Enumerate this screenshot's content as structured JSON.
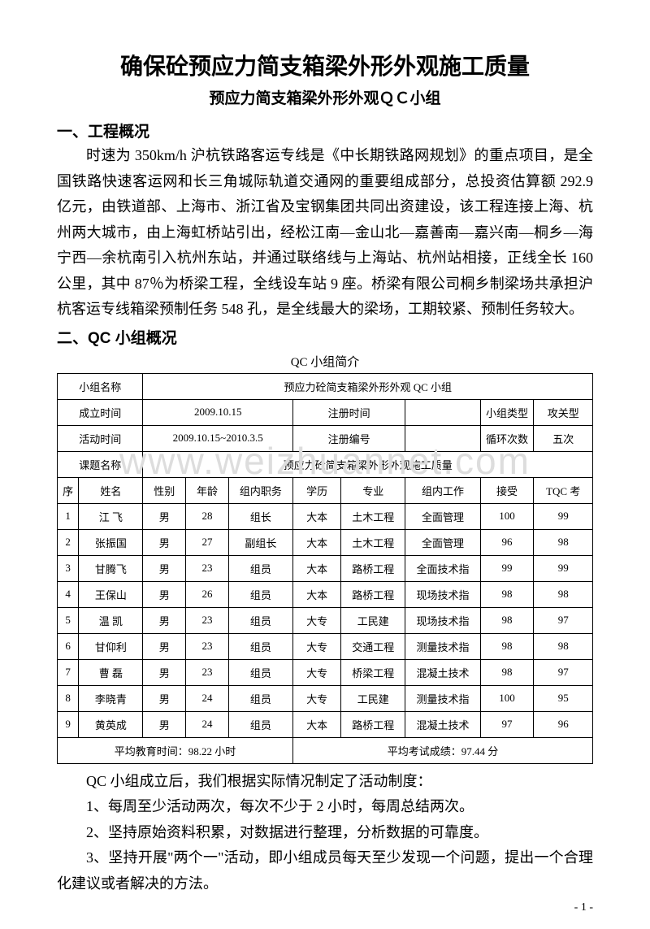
{
  "title": "确保砼预应力简支箱梁外形外观施工质量",
  "subtitle": "预应力简支箱梁外形外观ＱＣ小组",
  "section1": {
    "heading": "一、工程概况",
    "para": "时速为 350km/h 沪杭铁路客运专线是《中长期铁路网规划》的重点项目，是全国铁路快速客运网和长三角城际轨道交通网的重要组成部分，总投资估算额 292.9 亿元，由铁道部、上海市、浙江省及宝钢集团共同出资建设，该工程连接上海、杭州两大城市，由上海虹桥站引出，经松江南—金山北—嘉善南—嘉兴南—桐乡—海宁西—余杭南引入杭州东站，并通过联络线与上海站、杭州站相接，正线全长 160 公里，其中 87％为桥梁工程，全线设车站 9 座。桥梁有限公司桐乡制梁场共承担沪杭客运专线箱梁预制任务 548 孔，是全线最大的梁场，工期较紧、预制任务较大。"
  },
  "section2": {
    "heading": "二、QC 小组概况",
    "caption": "QC 小组简介"
  },
  "meta": {
    "groupNameLabel": "小组名称",
    "groupName": "预应力砼简支箱梁外形外观 QC 小组",
    "foundLabel": "成立时间",
    "foundDate": "2009.10.15",
    "regTimeLabel": "注册时间",
    "regTime": "",
    "groupTypeLabel": "小组类型",
    "groupType": "攻关型",
    "activityLabel": "活动时间",
    "activityPeriod": "2009.10.15~2010.3.5",
    "regNoLabel": "注册编号",
    "regNo": "",
    "cycleLabel": "循环次数",
    "cycleCount": "五次",
    "topicLabel": "课题名称",
    "topic": "预应力砼简支箱梁外形外观施工质量"
  },
  "headers": {
    "seq": "序",
    "name": "姓名",
    "sex": "性别",
    "age": "年龄",
    "role": "组内职务",
    "edu": "学历",
    "major": "专业",
    "job": "组内工作",
    "accept": "接受",
    "tqc": "TQC 考"
  },
  "members": [
    {
      "seq": "1",
      "name": "江  飞",
      "sex": "男",
      "age": "28",
      "role": "组长",
      "edu": "大本",
      "major": "土木工程",
      "job": "全面管理",
      "accept": "100",
      "tqc": "99"
    },
    {
      "seq": "2",
      "name": "张振国",
      "sex": "男",
      "age": "27",
      "role": "副组长",
      "edu": "大本",
      "major": "土木工程",
      "job": "全面管理",
      "accept": "96",
      "tqc": "98"
    },
    {
      "seq": "3",
      "name": "甘腾飞",
      "sex": "男",
      "age": "23",
      "role": "组员",
      "edu": "大本",
      "major": "路桥工程",
      "job": "全面技术指",
      "accept": "99",
      "tqc": "99"
    },
    {
      "seq": "4",
      "name": "王保山",
      "sex": "男",
      "age": "26",
      "role": "组员",
      "edu": "大本",
      "major": "路桥工程",
      "job": "现场技术指",
      "accept": "98",
      "tqc": "98"
    },
    {
      "seq": "5",
      "name": "温  凯",
      "sex": "男",
      "age": "23",
      "role": "组员",
      "edu": "大专",
      "major": "工民建",
      "job": "现场技术指",
      "accept": "98",
      "tqc": "97"
    },
    {
      "seq": "6",
      "name": "甘仰利",
      "sex": "男",
      "age": "23",
      "role": "组员",
      "edu": "大专",
      "major": "交通工程",
      "job": "测量技术指",
      "accept": "98",
      "tqc": "98"
    },
    {
      "seq": "7",
      "name": "曹  磊",
      "sex": "男",
      "age": "23",
      "role": "组员",
      "edu": "大专",
      "major": "桥梁工程",
      "job": "混凝土技术",
      "accept": "98",
      "tqc": "97"
    },
    {
      "seq": "8",
      "name": "李晓青",
      "sex": "男",
      "age": "24",
      "role": "组员",
      "edu": "大专",
      "major": "工民建",
      "job": "测量技术指",
      "accept": "100",
      "tqc": "95"
    },
    {
      "seq": "9",
      "name": "黄英成",
      "sex": "男",
      "age": "24",
      "role": "组员",
      "edu": "大本",
      "major": "路桥工程",
      "job": "混凝土技术",
      "accept": "97",
      "tqc": "96"
    }
  ],
  "footer": {
    "eduTime": "平均教育时间：98.22 小时",
    "examScore": "平均考试成绩：97.44 分"
  },
  "afterTable": {
    "intro": "QC 小组成立后，我们根据实际情况制定了活动制度：",
    "item1": "1、每周至少活动两次，每次不少于 2 小时，每周总结两次。",
    "item2": "2、坚持原始资料积累，对数据进行整理，分析数据的可靠度。",
    "item3": "3、坚持开展\"两个一\"活动，即小组成员每天至少发现一个问题，提出一个合理化建议或者解决的方法。"
  },
  "watermark": "www.weizhuannet.com",
  "pageNumber": "- 1 -"
}
